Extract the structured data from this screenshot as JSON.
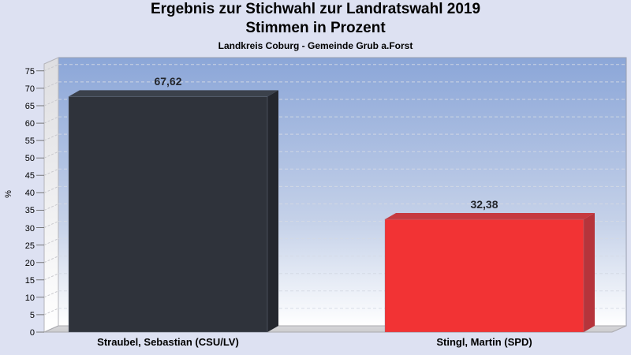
{
  "header": {
    "title": "Ergebnis zur Stichwahl zur Landratswahl 2019",
    "subtitle": "Stimmen in Prozent",
    "region_label": "Landkreis Coburg - Gemeinde Grub a.Forst"
  },
  "chart_data": {
    "type": "bar",
    "projection": "3d",
    "title": "Ergebnis zur Stichwahl zur Landratswahl 2019",
    "subtitle": "Stimmen in Prozent",
    "caption": "Landkreis Coburg - Gemeinde Grub a.Forst",
    "categories": [
      "Straubel, Sebastian (CSU/LV)",
      "Stingl, Martin (SPD)"
    ],
    "values": [
      67.62,
      32.38
    ],
    "value_labels": [
      "67,62",
      "32,38"
    ],
    "ylabel": "%",
    "ylim": [
      0,
      77
    ],
    "ytick_step": 5,
    "yticks": [
      0,
      5,
      10,
      15,
      20,
      25,
      30,
      35,
      40,
      45,
      50,
      55,
      60,
      65,
      70,
      75
    ],
    "grid": "dashed",
    "colors": {
      "page_background": "#dde1f2",
      "wall_top": "#8ba6d8",
      "wall_bottom": "#ffffff",
      "gridline": "#d4d9e3",
      "frame": "#99a0b0",
      "side_wall": "#dedee1",
      "floor": "#cccccf",
      "bars": [
        {
          "front": "#2f333b",
          "top": "#3b414b",
          "side": "#24272e"
        },
        {
          "front": "#f23334",
          "top": "#c63a40",
          "side": "#b6343b"
        }
      ]
    }
  }
}
